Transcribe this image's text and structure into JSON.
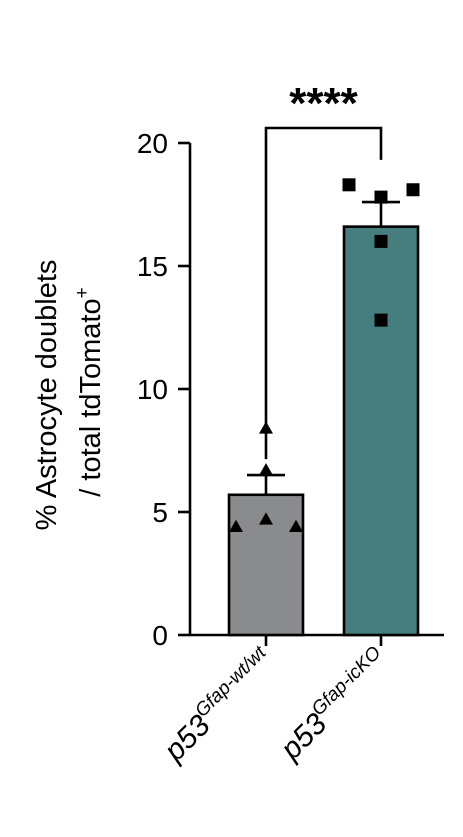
{
  "chart_data": {
    "type": "bar",
    "categories": [
      {
        "base": "p53",
        "superscript": "Gfap-wt/wt"
      },
      {
        "base": "p53",
        "superscript": "Gfap-icKO"
      }
    ],
    "values": [
      5.7,
      16.6
    ],
    "sem": [
      0.8,
      1.0
    ],
    "points": [
      [
        8.4,
        6.7,
        4.7,
        4.4,
        4.4
      ],
      [
        18.3,
        17.8,
        18.1,
        16.0,
        12.8
      ]
    ],
    "marker_shapes": [
      "triangle",
      "square"
    ],
    "bar_colors": [
      "#8a8b8d",
      "#467e7d"
    ],
    "ylabel_line1": "% Astrocyte doublets",
    "ylabel_line2": "/ total tdTomato",
    "ylabel_sup": "+",
    "ylim": [
      0,
      20
    ],
    "yticks": [
      "0",
      "5",
      "10",
      "15",
      "20"
    ],
    "significance": "****",
    "grid": false
  }
}
